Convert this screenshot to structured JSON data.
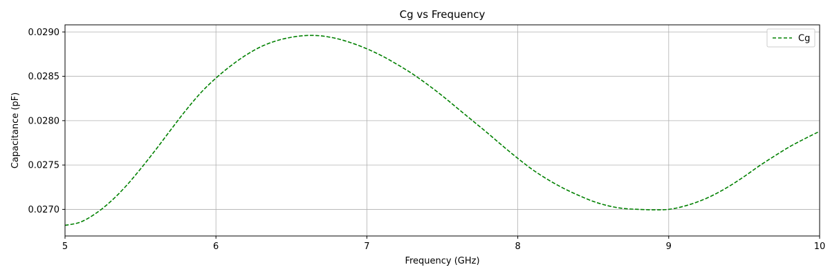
{
  "chart_data": {
    "type": "line",
    "title": "Cg vs Frequency",
    "xlabel": "Frequency (GHz)",
    "ylabel": "Capacitance (pF)",
    "xlim": [
      5,
      10
    ],
    "ylim": [
      0.0267,
      0.02908
    ],
    "xticks": [
      5,
      6,
      7,
      8,
      9,
      10
    ],
    "xtick_labels": [
      "5",
      "6",
      "7",
      "8",
      "9",
      "10"
    ],
    "yticks": [
      0.027,
      0.0275,
      0.028,
      0.0285,
      0.029
    ],
    "ytick_labels": [
      "0.0270",
      "0.0275",
      "0.0280",
      "0.0285",
      "0.0290"
    ],
    "grid": true,
    "legend": {
      "position": "top-right",
      "entries": [
        "Cg"
      ]
    },
    "series": [
      {
        "name": "Cg",
        "color": "#008000",
        "linestyle": "dashed",
        "x": [
          5.0,
          5.1,
          5.2,
          5.3,
          5.4,
          5.5,
          5.6,
          5.7,
          5.8,
          5.9,
          6.0,
          6.1,
          6.2,
          6.3,
          6.4,
          6.5,
          6.6,
          6.7,
          6.8,
          6.9,
          7.0,
          7.1,
          7.2,
          7.3,
          7.4,
          7.5,
          7.6,
          7.7,
          7.8,
          7.9,
          8.0,
          8.1,
          8.2,
          8.3,
          8.4,
          8.5,
          8.6,
          8.7,
          8.8,
          8.9,
          9.0,
          9.1,
          9.2,
          9.3,
          9.4,
          9.5,
          9.6,
          9.7,
          9.8,
          9.9,
          10.0
        ],
        "y": [
          0.02682,
          0.026855,
          0.02695,
          0.027085,
          0.027255,
          0.027455,
          0.02767,
          0.027895,
          0.028115,
          0.028315,
          0.02848,
          0.02862,
          0.02874,
          0.028835,
          0.0289,
          0.02894,
          0.02896,
          0.028955,
          0.028925,
          0.028875,
          0.02881,
          0.02873,
          0.028635,
          0.02853,
          0.02841,
          0.02828,
          0.02814,
          0.028,
          0.02786,
          0.027715,
          0.027575,
          0.027445,
          0.027335,
          0.02724,
          0.02716,
          0.02709,
          0.02704,
          0.02701,
          0.027,
          0.026995,
          0.027,
          0.027035,
          0.02709,
          0.027165,
          0.02726,
          0.02737,
          0.02749,
          0.0276,
          0.027705,
          0.027795,
          0.02788
        ]
      }
    ]
  }
}
